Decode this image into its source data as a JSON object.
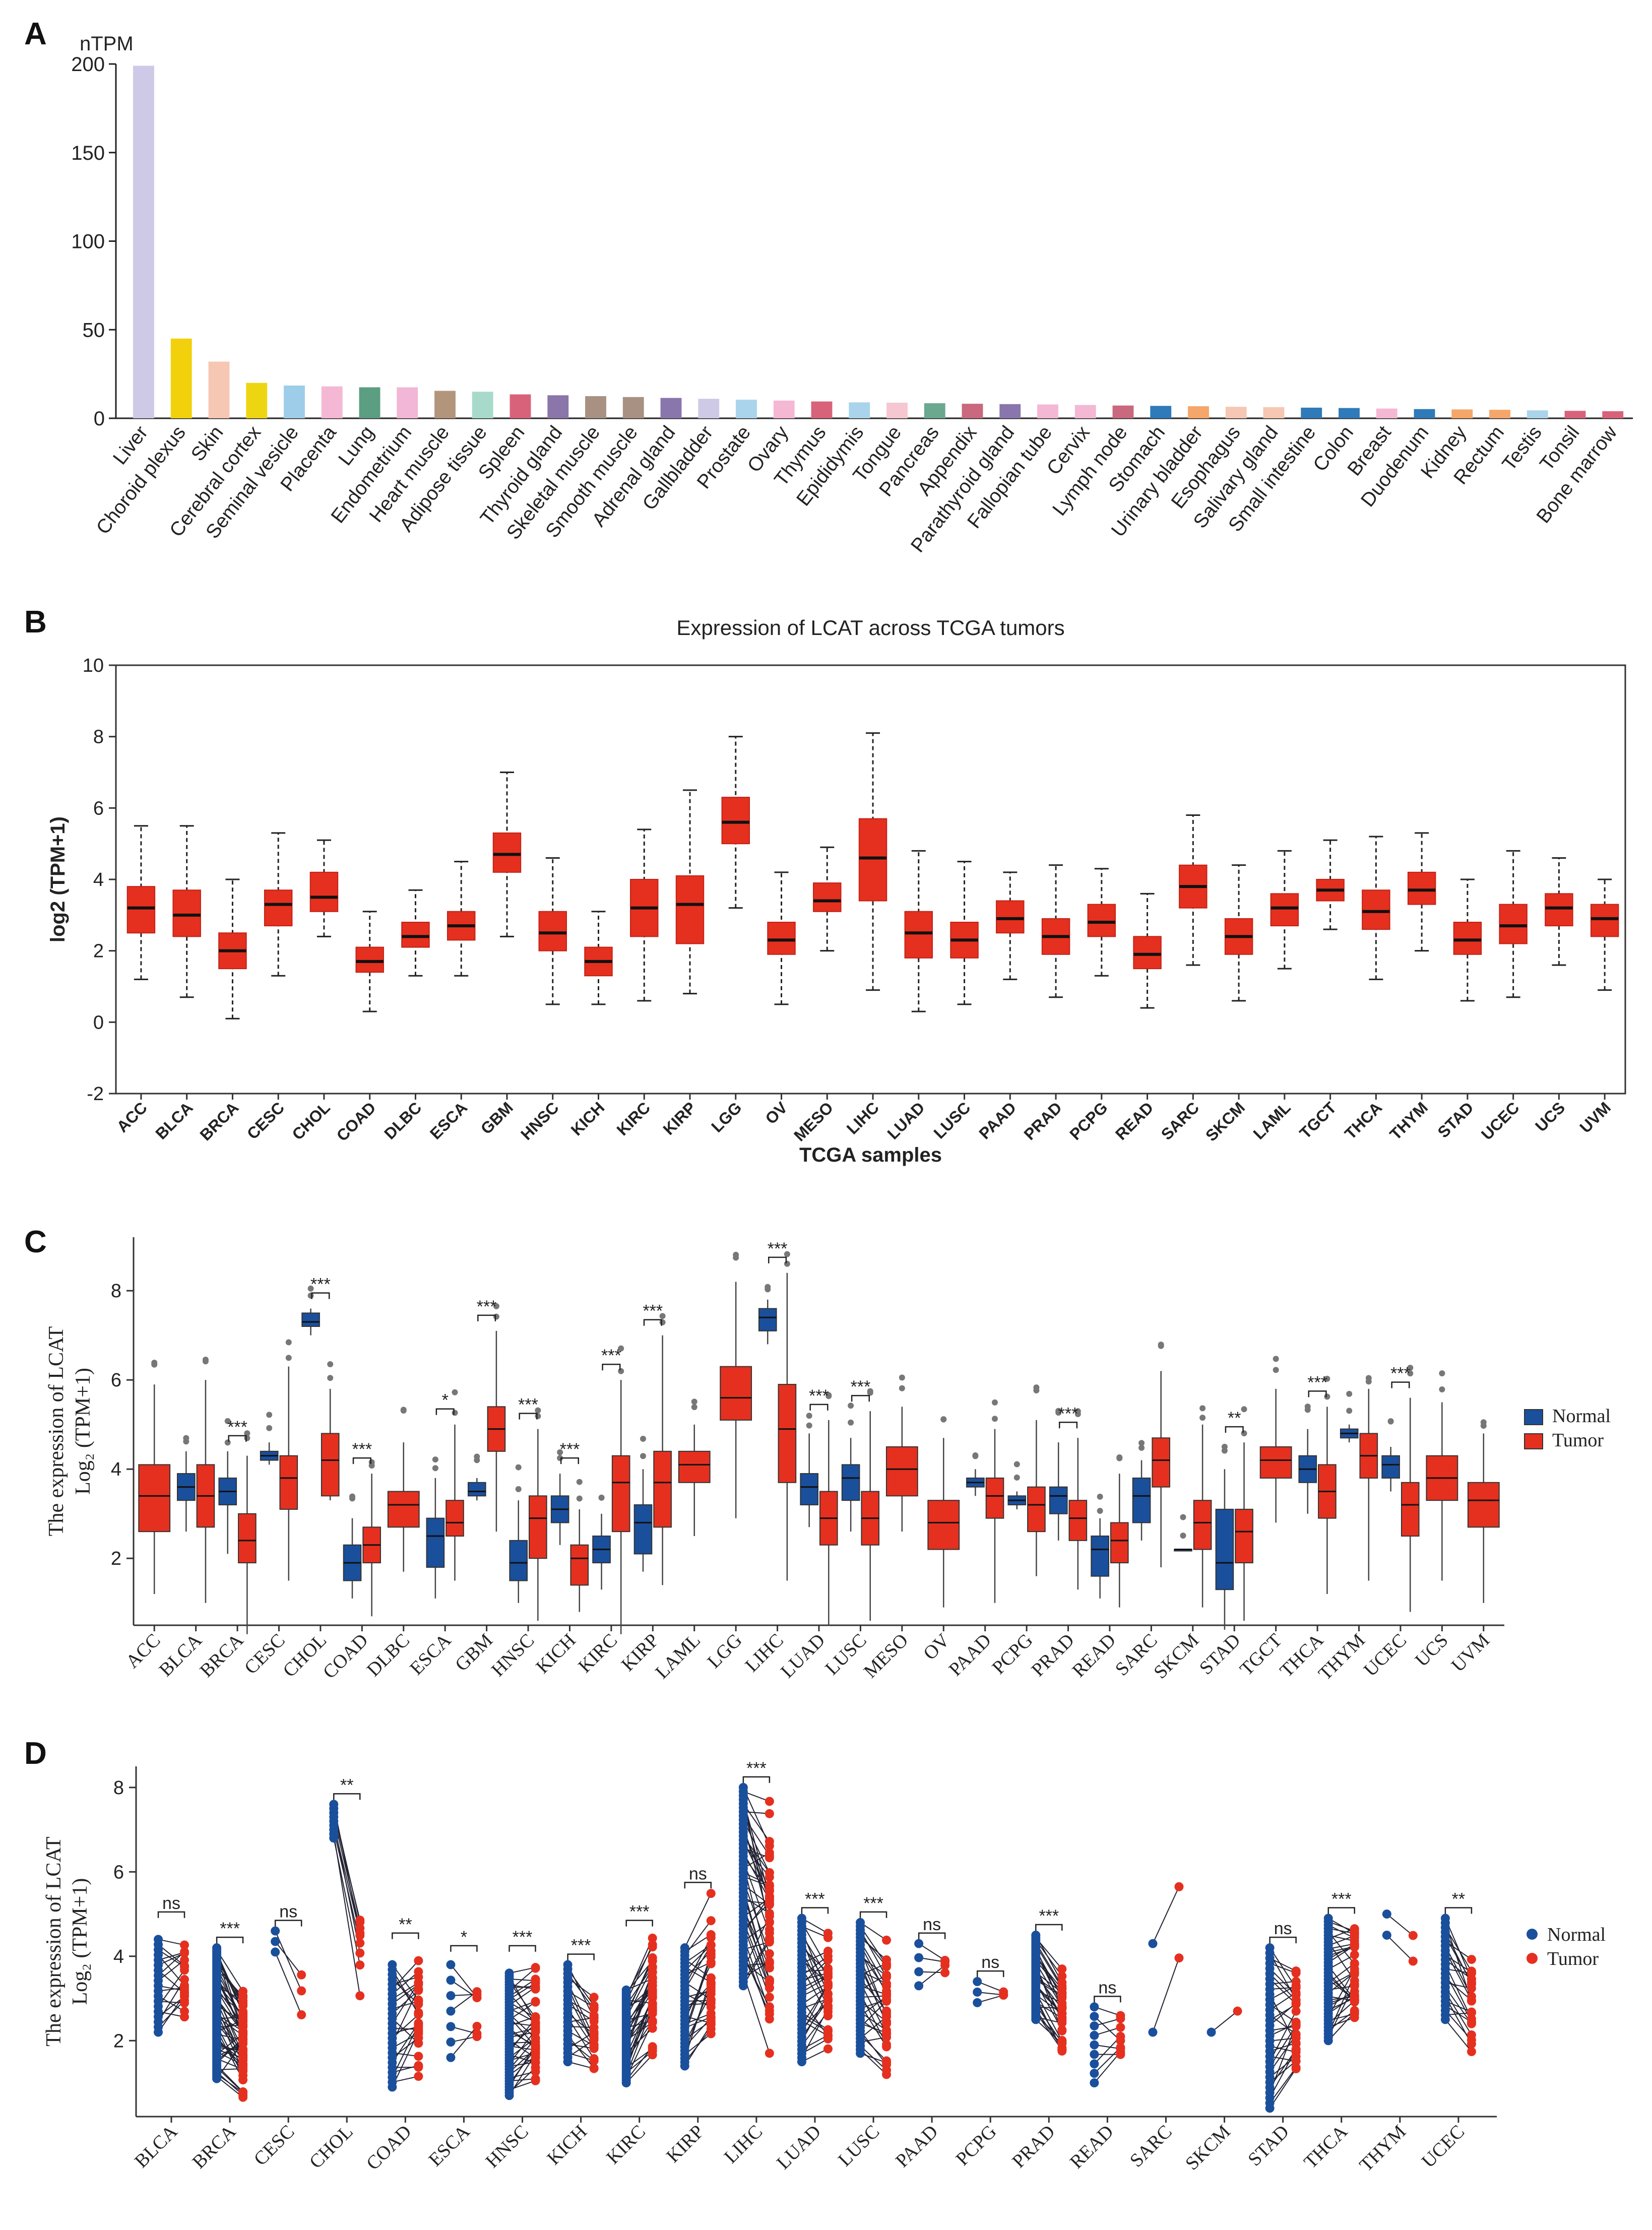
{
  "panels": {
    "A": {
      "label": "A"
    },
    "B": {
      "label": "B"
    },
    "C": {
      "label": "C"
    },
    "D": {
      "label": "D"
    }
  },
  "chart_data": [
    {
      "panel": "A",
      "type": "bar",
      "title": "",
      "ylabel": "nTPM",
      "xlabel": "",
      "ylim": [
        0,
        200
      ],
      "yticks": [
        0,
        50,
        100,
        150,
        200
      ],
      "categories": [
        "Liver",
        "Choroid plexus",
        "Skin",
        "Cerebral cortex",
        "Seminal vesicle",
        "Placenta",
        "Lung",
        "Endometrium",
        "Heart muscle",
        "Adipose tissue",
        "Spleen",
        "Thyroid gland",
        "Skeletal muscle",
        "Smooth muscle",
        "Adrenal gland",
        "Gallbladder",
        "Prostate",
        "Ovary",
        "Thymus",
        "Epididymis",
        "Tongue",
        "Pancreas",
        "Appendix",
        "Parathyroid gland",
        "Fallopian tube",
        "Cervix",
        "Lymph node",
        "Stomach",
        "Urinary bladder",
        "Esophagus",
        "Salivary gland",
        "Small intestine",
        "Colon",
        "Breast",
        "Duodenum",
        "Kidney",
        "Rectum",
        "Testis",
        "Tonsil",
        "Bone marrow"
      ],
      "values": [
        199,
        45,
        32,
        20,
        18.5,
        18,
        17.5,
        17.5,
        15.5,
        15,
        13.5,
        13,
        12.5,
        12,
        11.5,
        11,
        10.5,
        10,
        9.5,
        9,
        8.8,
        8.5,
        8.2,
        8,
        7.8,
        7.5,
        7.2,
        7,
        6.8,
        6.5,
        6.3,
        6,
        5.8,
        5.5,
        5.2,
        5,
        4.8,
        4.5,
        4.2,
        4
      ],
      "colors": [
        "#cdc9e6",
        "#f2d10c",
        "#f6c7b3",
        "#eed512",
        "#9ecde9",
        "#f4b8d4",
        "#5b9e82",
        "#f2b6d6",
        "#b3957c",
        "#a8dacb",
        "#d9627b",
        "#8a76a8",
        "#a89182",
        "#a89182",
        "#8876ac",
        "#cdc9e6",
        "#aad4eb",
        "#f4b8d4",
        "#d9627b",
        "#aad4eb",
        "#f6c7d0",
        "#6aa890",
        "#c9687e",
        "#8876ac",
        "#f4b8d4",
        "#f4b8d4",
        "#c9687e",
        "#2f7ab8",
        "#f5a66a",
        "#f6c7b3",
        "#f6c7b3",
        "#2f7ab8",
        "#2f7ab8",
        "#f4b8d4",
        "#2f7ab8",
        "#f5a66a",
        "#f5a66a",
        "#aad4eb",
        "#d9627b",
        "#d9627b"
      ]
    },
    {
      "panel": "B",
      "type": "box",
      "title": "Expression of LCAT across TCGA tumors",
      "xlabel": "TCGA samples",
      "ylabel": "log2 (TPM+1)",
      "ylim": [
        -2,
        10
      ],
      "yticks": [
        -2,
        0,
        2,
        4,
        6,
        8,
        10
      ],
      "box_color": "#e5301f",
      "categories": [
        "ACC",
        "BLCA",
        "BRCA",
        "CESC",
        "CHOL",
        "COAD",
        "DLBC",
        "ESCA",
        "GBM",
        "HNSC",
        "KICH",
        "KIRC",
        "KIRP",
        "LGG",
        "OV",
        "MESO",
        "LIHC",
        "LUAD",
        "LUSC",
        "PAAD",
        "PRAD",
        "PCPG",
        "READ",
        "SARC",
        "SKCM",
        "LAML",
        "TGCT",
        "THCA",
        "THYM",
        "STAD",
        "UCEC",
        "UCS",
        "UVM"
      ],
      "boxes": [
        [
          1.2,
          2.5,
          3.2,
          3.8,
          5.5
        ],
        [
          0.7,
          2.4,
          3.0,
          3.7,
          5.5
        ],
        [
          0.1,
          1.5,
          2.0,
          2.5,
          4.0
        ],
        [
          1.3,
          2.7,
          3.3,
          3.7,
          5.3
        ],
        [
          2.4,
          3.1,
          3.5,
          4.2,
          5.1
        ],
        [
          0.3,
          1.4,
          1.7,
          2.1,
          3.1
        ],
        [
          1.3,
          2.1,
          2.4,
          2.8,
          3.7
        ],
        [
          1.3,
          2.3,
          2.7,
          3.1,
          4.5
        ],
        [
          2.4,
          4.2,
          4.7,
          5.3,
          7.0
        ],
        [
          0.5,
          2.0,
          2.5,
          3.1,
          4.6
        ],
        [
          0.5,
          1.3,
          1.7,
          2.1,
          3.1
        ],
        [
          0.6,
          2.4,
          3.2,
          4.0,
          5.4
        ],
        [
          0.8,
          2.2,
          3.3,
          4.1,
          6.5
        ],
        [
          3.2,
          5.0,
          5.6,
          6.3,
          8.0
        ],
        [
          0.5,
          1.9,
          2.3,
          2.8,
          4.2
        ],
        [
          2.0,
          3.1,
          3.4,
          3.9,
          4.9
        ],
        [
          0.9,
          3.4,
          4.6,
          5.7,
          8.1
        ],
        [
          0.3,
          1.8,
          2.5,
          3.1,
          4.8
        ],
        [
          0.5,
          1.8,
          2.3,
          2.8,
          4.5
        ],
        [
          1.2,
          2.5,
          2.9,
          3.4,
          4.2
        ],
        [
          0.7,
          1.9,
          2.4,
          2.9,
          4.4
        ],
        [
          1.3,
          2.4,
          2.8,
          3.3,
          4.3
        ],
        [
          0.4,
          1.5,
          1.9,
          2.4,
          3.6
        ],
        [
          1.6,
          3.2,
          3.8,
          4.4,
          5.8
        ],
        [
          0.6,
          1.9,
          2.4,
          2.9,
          4.4
        ],
        [
          1.5,
          2.7,
          3.2,
          3.6,
          4.8
        ],
        [
          2.6,
          3.4,
          3.7,
          4.0,
          5.1
        ],
        [
          1.2,
          2.6,
          3.1,
          3.7,
          5.2
        ],
        [
          2.0,
          3.3,
          3.7,
          4.2,
          5.3
        ],
        [
          0.6,
          1.9,
          2.3,
          2.8,
          4.0
        ],
        [
          0.7,
          2.2,
          2.7,
          3.3,
          4.8
        ],
        [
          1.6,
          2.7,
          3.2,
          3.6,
          4.6
        ],
        [
          0.9,
          2.4,
          2.9,
          3.3,
          4.0
        ]
      ]
    },
    {
      "panel": "C",
      "type": "box",
      "ylabel": "The expression of LCAT",
      "ylabel2": "Log₂ (TPM+1)",
      "ylim": [
        0.5,
        9.2
      ],
      "yticks": [
        2,
        4,
        6,
        8
      ],
      "legend": {
        "position": "right",
        "entries": [
          "Normal",
          "Tumor"
        ]
      },
      "series_colors": {
        "Normal": "#1a4f9c",
        "Tumor": "#e5301f"
      },
      "categories": [
        "ACC",
        "BLCA",
        "BRCA",
        "CESC",
        "CHOL",
        "COAD",
        "DLBC",
        "ESCA",
        "GBM",
        "HNSC",
        "KICH",
        "KIRC",
        "KIRP",
        "LAML",
        "LGG",
        "LIHC",
        "LUAD",
        "LUSC",
        "MESO",
        "OV",
        "PAAD",
        "PCPG",
        "PRAD",
        "READ",
        "SARC",
        "SKCM",
        "STAD",
        "TGCT",
        "THCA",
        "THYM",
        "UCEC",
        "UCS",
        "UVM"
      ],
      "normal": [
        null,
        [
          2.6,
          3.3,
          3.6,
          3.9,
          4.4
        ],
        [
          2.1,
          3.2,
          3.5,
          3.8,
          4.4
        ],
        [
          4.1,
          4.2,
          4.3,
          4.4,
          4.6
        ],
        [
          7.0,
          7.2,
          7.3,
          7.5,
          7.6
        ],
        [
          1.1,
          1.5,
          1.9,
          2.3,
          2.9
        ],
        null,
        [
          1.1,
          1.8,
          2.5,
          2.9,
          3.8
        ],
        [
          3.3,
          3.4,
          3.5,
          3.7,
          3.8
        ],
        [
          1.0,
          1.5,
          1.9,
          2.4,
          3.3
        ],
        [
          2.3,
          2.8,
          3.1,
          3.4,
          3.9
        ],
        [
          1.3,
          1.9,
          2.2,
          2.5,
          3.0
        ],
        [
          1.7,
          2.1,
          2.8,
          3.2,
          4.0
        ],
        null,
        null,
        [
          6.8,
          7.1,
          7.4,
          7.6,
          7.8
        ],
        [
          2.7,
          3.2,
          3.6,
          3.9,
          4.8
        ],
        [
          2.6,
          3.3,
          3.8,
          4.1,
          4.7
        ],
        null,
        null,
        [
          3.4,
          3.6,
          3.7,
          3.8,
          4.0
        ],
        [
          3.1,
          3.2,
          3.3,
          3.4,
          3.5
        ],
        [
          2.4,
          3.0,
          3.4,
          3.6,
          4.6
        ],
        [
          1.1,
          1.6,
          2.2,
          2.5,
          2.9
        ],
        [
          2.4,
          2.8,
          3.4,
          3.8,
          4.2
        ],
        [
          2.2,
          2.2,
          2.2,
          2.2,
          2.2
        ],
        [
          0.4,
          1.3,
          1.9,
          3.1,
          4.0
        ],
        null,
        [
          3.0,
          3.7,
          4.0,
          4.3,
          4.9
        ],
        [
          4.6,
          4.7,
          4.8,
          4.9,
          5.0
        ],
        [
          3.5,
          3.8,
          4.1,
          4.3,
          4.5
        ],
        null,
        null
      ],
      "tumor": [
        [
          1.2,
          2.6,
          3.4,
          4.1,
          5.9
        ],
        [
          1.0,
          2.7,
          3.4,
          4.1,
          6.0
        ],
        [
          0.3,
          1.9,
          2.4,
          3.0,
          4.3
        ],
        [
          1.5,
          3.1,
          3.8,
          4.3,
          6.3
        ],
        [
          3.3,
          3.4,
          4.2,
          4.8,
          5.8
        ],
        [
          0.7,
          1.9,
          2.3,
          2.7,
          3.9
        ],
        [
          1.7,
          2.7,
          3.2,
          3.5,
          4.6
        ],
        [
          1.5,
          2.5,
          2.8,
          3.3,
          5.0
        ],
        [
          2.6,
          4.4,
          4.9,
          5.4,
          7.1
        ],
        [
          0.6,
          2.0,
          2.9,
          3.4,
          4.9
        ],
        [
          0.8,
          1.4,
          2.0,
          2.3,
          3.1
        ],
        [
          0.3,
          2.6,
          3.7,
          4.3,
          6.0
        ],
        [
          1.4,
          2.7,
          3.7,
          4.4,
          7.0
        ],
        [
          2.5,
          3.7,
          4.1,
          4.4,
          5.0
        ],
        [
          2.9,
          5.1,
          5.6,
          6.3,
          8.2
        ],
        [
          1.5,
          3.7,
          4.9,
          5.9,
          8.4
        ],
        [
          0.5,
          2.3,
          2.9,
          3.5,
          5.1
        ],
        [
          0.6,
          2.3,
          2.9,
          3.5,
          5.3
        ],
        [
          2.6,
          3.4,
          4.0,
          4.5,
          5.4
        ],
        [
          0.9,
          2.2,
          2.8,
          3.3,
          4.7
        ],
        [
          1.0,
          2.9,
          3.4,
          3.8,
          4.9
        ],
        [
          1.6,
          2.6,
          3.2,
          3.6,
          5.1
        ],
        [
          1.3,
          2.4,
          2.9,
          3.3,
          4.7
        ],
        [
          0.9,
          1.9,
          2.4,
          2.8,
          3.9
        ],
        [
          1.8,
          3.6,
          4.2,
          4.7,
          6.2
        ],
        [
          0.9,
          2.2,
          2.8,
          3.3,
          5.0
        ],
        [
          0.6,
          1.9,
          2.6,
          3.1,
          4.6
        ],
        [
          2.8,
          3.8,
          4.2,
          4.5,
          5.8
        ],
        [
          1.2,
          2.9,
          3.5,
          4.1,
          5.4
        ],
        [
          1.5,
          3.8,
          4.3,
          4.8,
          5.8
        ],
        [
          0.8,
          2.5,
          3.2,
          3.7,
          5.6
        ],
        [
          1.5,
          3.3,
          3.8,
          4.3,
          5.5
        ],
        [
          1.0,
          2.7,
          3.3,
          3.7,
          4.8
        ]
      ],
      "significance": [
        null,
        null,
        "***",
        null,
        "***",
        "***",
        null,
        "*",
        "***",
        "***",
        "***",
        "***",
        "***",
        null,
        null,
        "***",
        "***",
        "***",
        null,
        null,
        null,
        null,
        "***",
        null,
        null,
        null,
        "**",
        null,
        "***",
        null,
        "***",
        null,
        null
      ]
    },
    {
      "panel": "D",
      "type": "paired-scatter",
      "ylabel": "The expression of LCAT",
      "ylabel2": "Log₂ (TPM+1)",
      "ylim": [
        0.2,
        8.5
      ],
      "yticks": [
        2,
        4,
        6,
        8
      ],
      "legend": {
        "position": "right",
        "entries": [
          "Normal",
          "Tumor"
        ]
      },
      "series_colors": {
        "Normal": "#1a4f9c",
        "Tumor": "#e5301f"
      },
      "categories": [
        "BLCA",
        "BRCA",
        "CESC",
        "CHOL",
        "COAD",
        "ESCA",
        "HNSC",
        "KICH",
        "KIRC",
        "KIRP",
        "LIHC",
        "LUAD",
        "LUSC",
        "PAAD",
        "PCPG",
        "PRAD",
        "READ",
        "SARC",
        "SKCM",
        "STAD",
        "THCA",
        "THYM",
        "UCEC"
      ],
      "normal_range": [
        [
          2.2,
          4.4
        ],
        [
          1.1,
          4.2
        ],
        [
          4.1,
          4.6
        ],
        [
          6.8,
          7.6
        ],
        [
          0.9,
          3.8
        ],
        [
          1.6,
          3.8
        ],
        [
          0.7,
          3.6
        ],
        [
          1.5,
          3.8
        ],
        [
          1.0,
          3.2
        ],
        [
          1.4,
          4.2
        ],
        [
          3.3,
          8.0
        ],
        [
          1.5,
          4.9
        ],
        [
          1.7,
          4.8
        ],
        [
          3.3,
          4.3
        ],
        [
          2.9,
          3.4
        ],
        [
          2.5,
          4.5
        ],
        [
          1.0,
          2.8
        ],
        [
          2.2,
          4.3
        ],
        [
          2.2,
          2.2
        ],
        [
          0.4,
          4.2
        ],
        [
          2.0,
          4.9
        ],
        [
          4.5,
          5.0
        ],
        [
          2.5,
          4.9
        ]
      ],
      "tumor_range": [
        [
          2.1,
          4.8
        ],
        [
          0.5,
          3.5
        ],
        [
          1.7,
          4.3
        ],
        [
          2.9,
          5.4
        ],
        [
          1.0,
          4.3
        ],
        [
          1.7,
          4.0
        ],
        [
          0.8,
          4.0
        ],
        [
          1.0,
          3.2
        ],
        [
          1.5,
          4.6
        ],
        [
          1.5,
          5.5
        ],
        [
          1.5,
          7.9
        ],
        [
          1.4,
          4.7
        ],
        [
          1.0,
          4.6
        ],
        [
          3.5,
          4.1
        ],
        [
          3.0,
          3.3
        ],
        [
          1.4,
          3.8
        ],
        [
          1.2,
          2.8
        ],
        [
          3.8,
          6.0
        ],
        [
          2.7,
          2.7
        ],
        [
          0.8,
          3.8
        ],
        [
          2.1,
          4.9
        ],
        [
          3.8,
          4.5
        ],
        [
          1.5,
          4.5
        ]
      ],
      "pair_counts": [
        19,
        60,
        3,
        9,
        26,
        7,
        43,
        23,
        38,
        32,
        50,
        36,
        36,
        4,
        3,
        35,
        9,
        2,
        1,
        32,
        37,
        2,
        23
      ],
      "significance": [
        "ns",
        "***",
        "ns",
        "**",
        "**",
        "*",
        "***",
        "***",
        "***",
        "ns",
        "***",
        "***",
        "***",
        "ns",
        "ns",
        "***",
        "ns",
        null,
        null,
        "ns",
        "***",
        null,
        "**"
      ]
    }
  ]
}
